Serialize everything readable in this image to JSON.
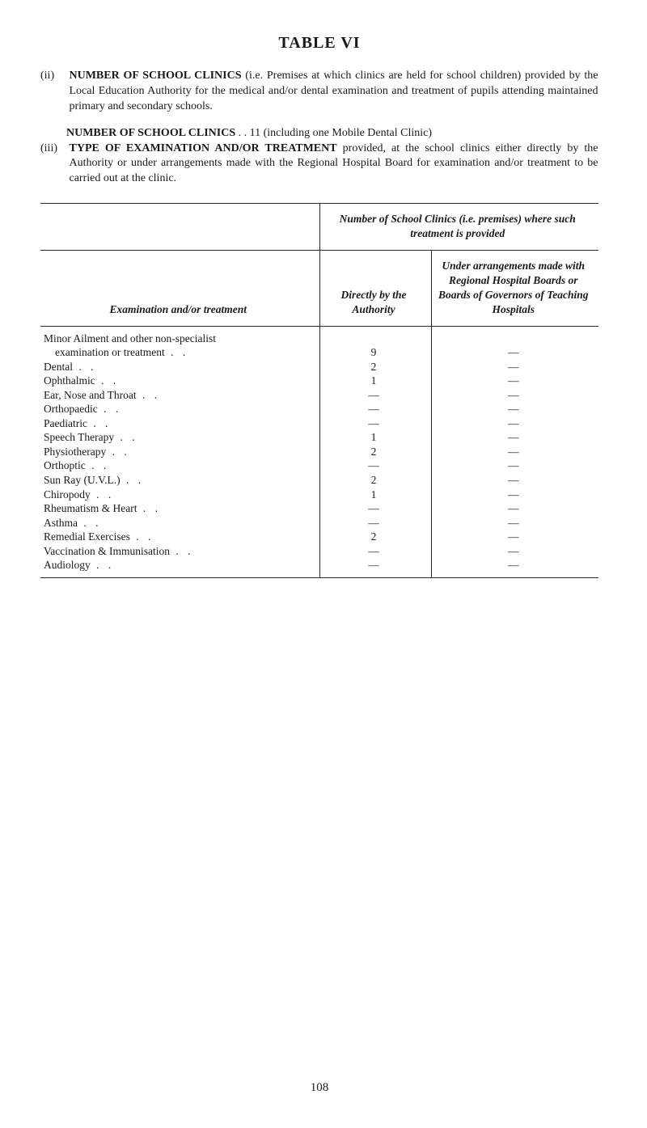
{
  "title": "TABLE VI",
  "paragraphs": {
    "ii": {
      "label": "(ii)",
      "lead": "NUMBER OF SCHOOL CLINICS",
      "rest": " (i.e. Premises at which clinics are held for school children) provided by the Local Education Authority for the medical and/or dental examination and treatment of pupils attending maintained primary and secondary schools."
    },
    "iii_pre": {
      "lead": "NUMBER OF SCHOOL CLINICS",
      "mid": "  . .  11 (including one Mobile Dental Clinic)"
    },
    "iii": {
      "label": "(iii)",
      "lead": "TYPE OF EXAMINATION AND/OR TREATMENT",
      "rest": " provided, at the school clinics either directly by the Authority or under arrangements made with the Regional Hospital Board for examination and/or treatment to be carried out at the clinic."
    }
  },
  "table": {
    "span_header": "Number of School Clinics (i.e. premises) where such treatment is provided",
    "col_exam": "Examination and/or treatment",
    "col_direct": "Directly by the Authority",
    "col_arr": "Under arrangements made with Regional Hospital Boards or Boards of Governors of Teaching Hospitals",
    "rows": [
      {
        "label": "Minor Ailment and other non-specialist",
        "direct": "",
        "arr": "",
        "indent": false
      },
      {
        "label": "examination or treatment",
        "direct": "9",
        "arr": "—",
        "indent": true
      },
      {
        "label": "Dental",
        "direct": "2",
        "arr": "—",
        "indent": false
      },
      {
        "label": "Ophthalmic",
        "direct": "1",
        "arr": "—",
        "indent": false
      },
      {
        "label": "Ear, Nose and Throat",
        "direct": "—",
        "arr": "—",
        "indent": false
      },
      {
        "label": "Orthopaedic",
        "direct": "—",
        "arr": "—",
        "indent": false
      },
      {
        "label": "Paediatric",
        "direct": "—",
        "arr": "—",
        "indent": false
      },
      {
        "label": "Speech Therapy",
        "direct": "1",
        "arr": "—",
        "indent": false
      },
      {
        "label": "Physiotherapy",
        "direct": "2",
        "arr": "—",
        "indent": false
      },
      {
        "label": "Orthoptic",
        "direct": "—",
        "arr": "—",
        "indent": false
      },
      {
        "label": "Sun Ray (U.V.L.)",
        "direct": "2",
        "arr": "—",
        "indent": false
      },
      {
        "label": "Chiropody",
        "direct": "1",
        "arr": "—",
        "indent": false
      },
      {
        "label": "Rheumatism & Heart",
        "direct": "—",
        "arr": "—",
        "indent": false
      },
      {
        "label": "Asthma",
        "direct": "—",
        "arr": "—",
        "indent": false
      },
      {
        "label": "Remedial Exercises",
        "direct": "2",
        "arr": "—",
        "indent": false
      },
      {
        "label": "Vaccination & Immunisation",
        "direct": "—",
        "arr": "—",
        "indent": false
      },
      {
        "label": "Audiology",
        "direct": "—",
        "arr": "—",
        "indent": false
      }
    ]
  },
  "page_number": "108"
}
